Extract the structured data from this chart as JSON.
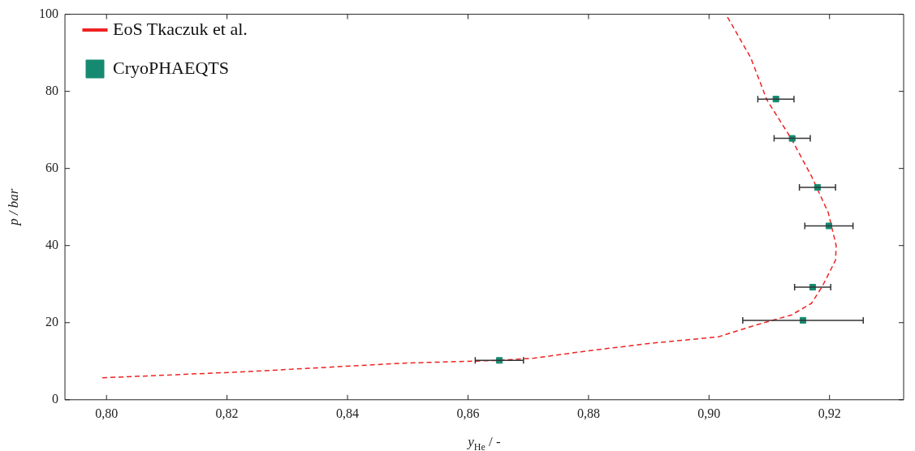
{
  "chart_data": {
    "type": "scatter",
    "xlabel": "y$_{He}$ / -",
    "ylabel": "p / bar",
    "xlim": [
      0.7931,
      0.9323
    ],
    "ylim": [
      0,
      100
    ],
    "xticks": [
      {
        "value": 0.8,
        "label": "0,80"
      },
      {
        "value": 0.82,
        "label": "0,82"
      },
      {
        "value": 0.84,
        "label": "0,84"
      },
      {
        "value": 0.86,
        "label": "0,86"
      },
      {
        "value": 0.88,
        "label": "0,88"
      },
      {
        "value": 0.9,
        "label": "0,90"
      },
      {
        "value": 0.92,
        "label": "0,92"
      }
    ],
    "yticks": [
      0,
      20,
      40,
      60,
      80,
      100
    ],
    "grid": false,
    "legend": "top left",
    "series": [
      {
        "name": "EoS Tkaczuk et al.",
        "type": "line",
        "line_style": "dashed",
        "marker": "none",
        "color": "#ee2222",
        "x": [
          0.7993,
          0.8223,
          0.8494,
          0.865,
          0.871,
          0.879,
          0.89,
          0.9015,
          0.9076,
          0.9137,
          0.917,
          0.9188,
          0.921,
          0.9211,
          0.9198,
          0.917,
          0.9137,
          0.9096,
          0.9069,
          0.9028
        ],
        "values": [
          5.7,
          7.2,
          9.5,
          10.2,
          10.8,
          12.5,
          14.6,
          16.3,
          19.3,
          22,
          25,
          29.4,
          36.2,
          40,
          48.5,
          58,
          67.6,
          77.8,
          88.8,
          100
        ]
      },
      {
        "name": "CryoPHAEQTS",
        "marker": "square",
        "color": "#168a70",
        "x": [
          0.9111,
          0.9138,
          0.918,
          0.9199,
          0.9172,
          0.9156,
          0.8652
        ],
        "values": [
          78,
          67.8,
          55.1,
          45.1,
          29.2,
          20.6,
          10.2
        ],
        "xerrors": [
          0.003,
          0.003,
          0.003,
          0.004,
          0.003,
          0.01,
          0.004
        ]
      }
    ]
  }
}
